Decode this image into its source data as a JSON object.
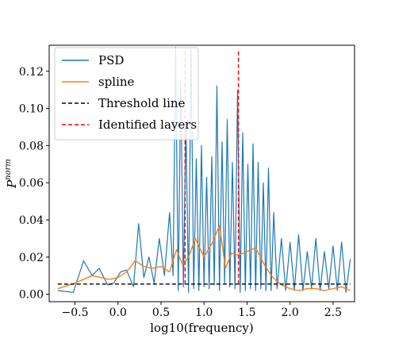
{
  "chart_data": {
    "type": "line",
    "xlabel": "log10(frequency)",
    "ylabel": "P",
    "ylabel_superscript": "norm",
    "xlim": [
      -0.8,
      2.75
    ],
    "ylim": [
      -0.004,
      0.134
    ],
    "x_ticks": [
      -0.5,
      0.0,
      0.5,
      1.0,
      1.5,
      2.0,
      2.5
    ],
    "x_tick_labels": [
      "−0.5",
      "0.0",
      "0.5",
      "1.0",
      "1.5",
      "2.0",
      "2.5"
    ],
    "y_ticks": [
      0.0,
      0.02,
      0.04,
      0.06,
      0.08,
      0.1,
      0.12
    ],
    "y_tick_labels": [
      "0.00",
      "0.02",
      "0.04",
      "0.06",
      "0.08",
      "0.10",
      "0.12"
    ],
    "legend_position": "top-left",
    "legend": [
      {
        "label": "PSD",
        "color": "#1f77b4",
        "dash": "solid"
      },
      {
        "label": "spline",
        "color": "#ff7f0e",
        "dash": "solid"
      },
      {
        "label": "Threshold line",
        "color": "#000000",
        "dash": "dashed"
      },
      {
        "label": "Identified layers",
        "color": "#ff0000",
        "dash": "dashed"
      }
    ],
    "series": [
      {
        "name": "PSD",
        "color": "#1f77b4",
        "x": [
          -0.7,
          -0.52,
          -0.4,
          -0.3,
          -0.22,
          -0.12,
          -0.05,
          0.03,
          0.1,
          0.18,
          0.24,
          0.3,
          0.36,
          0.42,
          0.48,
          0.54,
          0.6,
          0.64,
          0.67,
          0.7,
          0.73,
          0.76,
          0.79,
          0.82,
          0.85,
          0.88,
          0.91,
          0.94,
          0.97,
          1.0,
          1.03,
          1.06,
          1.09,
          1.12,
          1.15,
          1.18,
          1.21,
          1.24,
          1.27,
          1.3,
          1.33,
          1.36,
          1.39,
          1.42,
          1.45,
          1.48,
          1.51,
          1.54,
          1.57,
          1.6,
          1.63,
          1.66,
          1.69,
          1.72,
          1.75,
          1.78,
          1.81,
          1.85,
          1.9,
          1.95,
          2.0,
          2.05,
          2.1,
          2.15,
          2.2,
          2.25,
          2.3,
          2.35,
          2.4,
          2.45,
          2.5,
          2.55,
          2.6,
          2.65,
          2.7
        ],
        "y": [
          0.002,
          0.001,
          0.018,
          0.01,
          0.014,
          0.005,
          0.006,
          0.012,
          0.013,
          0.004,
          0.038,
          0.009,
          0.02,
          0.006,
          0.03,
          0.01,
          0.044,
          0.01,
          0.133,
          0.002,
          0.115,
          0.004,
          0.092,
          0.001,
          0.132,
          0.003,
          0.073,
          0.002,
          0.08,
          0.004,
          0.063,
          0.003,
          0.074,
          0.005,
          0.112,
          0.002,
          0.082,
          0.006,
          0.094,
          0.004,
          0.071,
          0.003,
          0.11,
          0.001,
          0.087,
          0.002,
          0.07,
          0.003,
          0.081,
          0.002,
          0.071,
          0.003,
          0.06,
          0.002,
          0.068,
          0.002,
          0.044,
          0.003,
          0.03,
          0.002,
          0.028,
          0.002,
          0.032,
          0.002,
          0.023,
          0.003,
          0.03,
          0.002,
          0.023,
          0.003,
          0.026,
          0.002,
          0.028,
          0.001,
          0.019
        ]
      },
      {
        "name": "spline",
        "color": "#ff7f0e",
        "x": [
          -0.7,
          -0.5,
          -0.3,
          -0.1,
          0.0,
          0.1,
          0.2,
          0.3,
          0.4,
          0.5,
          0.6,
          0.68,
          0.75,
          0.82,
          0.9,
          1.0,
          1.1,
          1.18,
          1.25,
          1.32,
          1.4,
          1.5,
          1.6,
          1.7,
          1.8,
          1.9,
          2.0,
          2.1,
          2.2,
          2.3,
          2.4,
          2.5,
          2.6,
          2.7
        ],
        "y": [
          0.003,
          0.006,
          0.01,
          0.008,
          0.009,
          0.012,
          0.018,
          0.015,
          0.014,
          0.015,
          0.012,
          0.024,
          0.016,
          0.02,
          0.03,
          0.02,
          0.028,
          0.037,
          0.014,
          0.022,
          0.021,
          0.023,
          0.025,
          0.016,
          0.009,
          0.005,
          0.003,
          0.002,
          0.003,
          0.003,
          0.002,
          0.003,
          0.004,
          0.002
        ]
      }
    ],
    "threshold": {
      "name": "Threshold line",
      "y": 0.0055,
      "color": "#000000"
    },
    "identified_layers": {
      "name": "Identified layers",
      "x": [
        0.78,
        1.4
      ],
      "color": "#ff0000"
    }
  }
}
